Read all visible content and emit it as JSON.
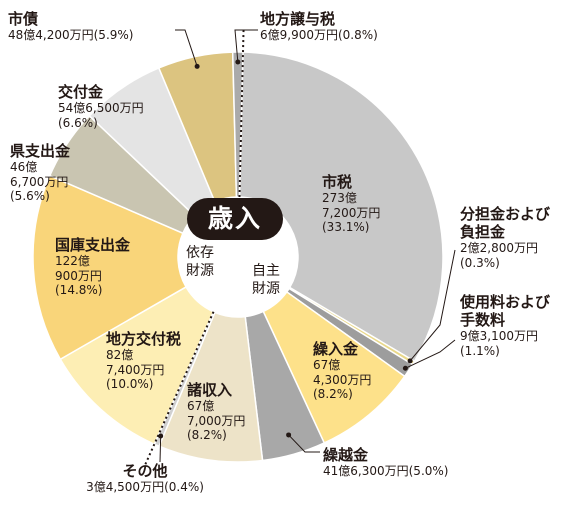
{
  "chart_data": {
    "type": "pie",
    "title": "歳入",
    "groups": [
      "依存財源",
      "自主財源"
    ],
    "slices": [
      {
        "name": "市税",
        "amount": "273億7,200万円",
        "percent": 33.1,
        "color": "#c8c8c8",
        "group": "自主財源"
      },
      {
        "name": "分担金および負担金",
        "amount": "2億2,800万円",
        "percent": 0.3,
        "color": "#e9d88a",
        "group": "自主財源"
      },
      {
        "name": "使用料および手数料",
        "amount": "9億3,100万円",
        "percent": 1.1,
        "color": "#9d9d9d",
        "group": "自主財源"
      },
      {
        "name": "繰入金",
        "amount": "67億4,300万円",
        "percent": 8.2,
        "color": "#fde18a",
        "group": "自主財源"
      },
      {
        "name": "繰越金",
        "amount": "41億6,300万円",
        "percent": 5.0,
        "color": "#a8a8a8",
        "group": "自主財源"
      },
      {
        "name": "諸収入",
        "amount": "67億7,000万円",
        "percent": 8.2,
        "color": "#ede3c8",
        "group": "自主財源"
      },
      {
        "name": "その他",
        "amount": "3億4,500万円",
        "percent": 0.4,
        "color": "#d0d0d0",
        "group": "自主財源"
      },
      {
        "name": "地方交付税",
        "amount": "82億7,400万円",
        "percent": 10.0,
        "color": "#fdeeb4",
        "group": "依存財源"
      },
      {
        "name": "国庫支出金",
        "amount": "122億900万円",
        "percent": 14.8,
        "color": "#f9d57a",
        "group": "依存財源"
      },
      {
        "name": "県支出金",
        "amount": "46億6,700万円",
        "percent": 5.6,
        "color": "#c9c5b1",
        "group": "依存財源"
      },
      {
        "name": "交付金",
        "amount": "54億6,500万円",
        "percent": 6.6,
        "color": "#e4e4e4",
        "group": "依存財源"
      },
      {
        "name": "市債",
        "amount": "48億4,200万円",
        "percent": 5.9,
        "color": "#dcc480",
        "group": "依存財源"
      },
      {
        "name": "地方譲与税",
        "amount": "6億9,900万円",
        "percent": 0.8,
        "color": "#aaaaaa",
        "group": "依存財源"
      }
    ]
  }
}
